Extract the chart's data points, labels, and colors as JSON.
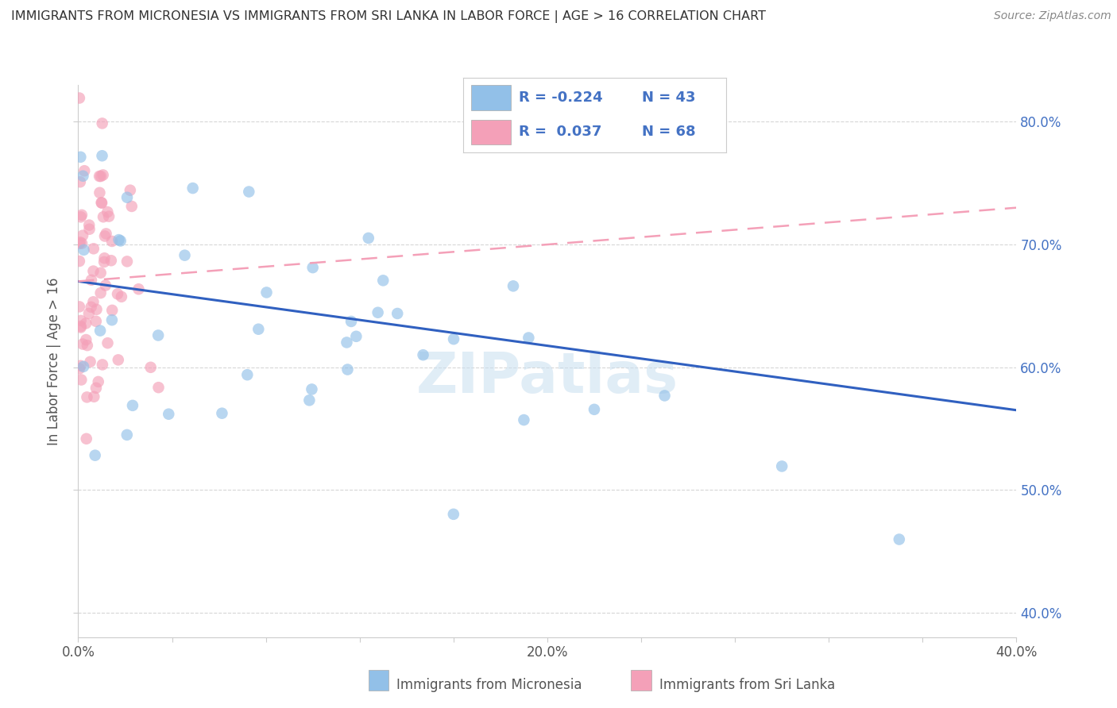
{
  "title": "IMMIGRANTS FROM MICRONESIA VS IMMIGRANTS FROM SRI LANKA IN LABOR FORCE | AGE > 16 CORRELATION CHART",
  "source": "Source: ZipAtlas.com",
  "ylabel": "In Labor Force | Age > 16",
  "xlim": [
    0.0,
    0.4
  ],
  "ylim": [
    0.38,
    0.83
  ],
  "x_ticks": [
    0.0,
    0.04,
    0.08,
    0.12,
    0.16,
    0.2,
    0.24,
    0.28,
    0.32,
    0.36,
    0.4
  ],
  "x_tick_labels": [
    "0.0%",
    "",
    "",
    "",
    "",
    "20.0%",
    "",
    "",
    "",
    "",
    "40.0%"
  ],
  "y_ticks": [
    0.4,
    0.5,
    0.6,
    0.7,
    0.8
  ],
  "y_tick_labels": [
    "40.0%",
    "50.0%",
    "60.0%",
    "70.0%",
    "80.0%"
  ],
  "micronesia_color": "#92c0e8",
  "sri_lanka_color": "#f4a0b8",
  "micronesia_line_color": "#3060c0",
  "sri_lanka_line_color": "#e87080",
  "micro_line_x": [
    0.0,
    0.4
  ],
  "micro_line_y": [
    0.67,
    0.565
  ],
  "sri_line_x": [
    0.0,
    0.4
  ],
  "sri_line_y": [
    0.67,
    0.73
  ],
  "legend_R_micro": "-0.224",
  "legend_N_micro": "43",
  "legend_R_sri": "0.037",
  "legend_N_sri": "68",
  "legend_label_micro": "Immigrants from Micronesia",
  "legend_label_sri": "Immigrants from Sri Lanka",
  "watermark": "ZIPatlas"
}
